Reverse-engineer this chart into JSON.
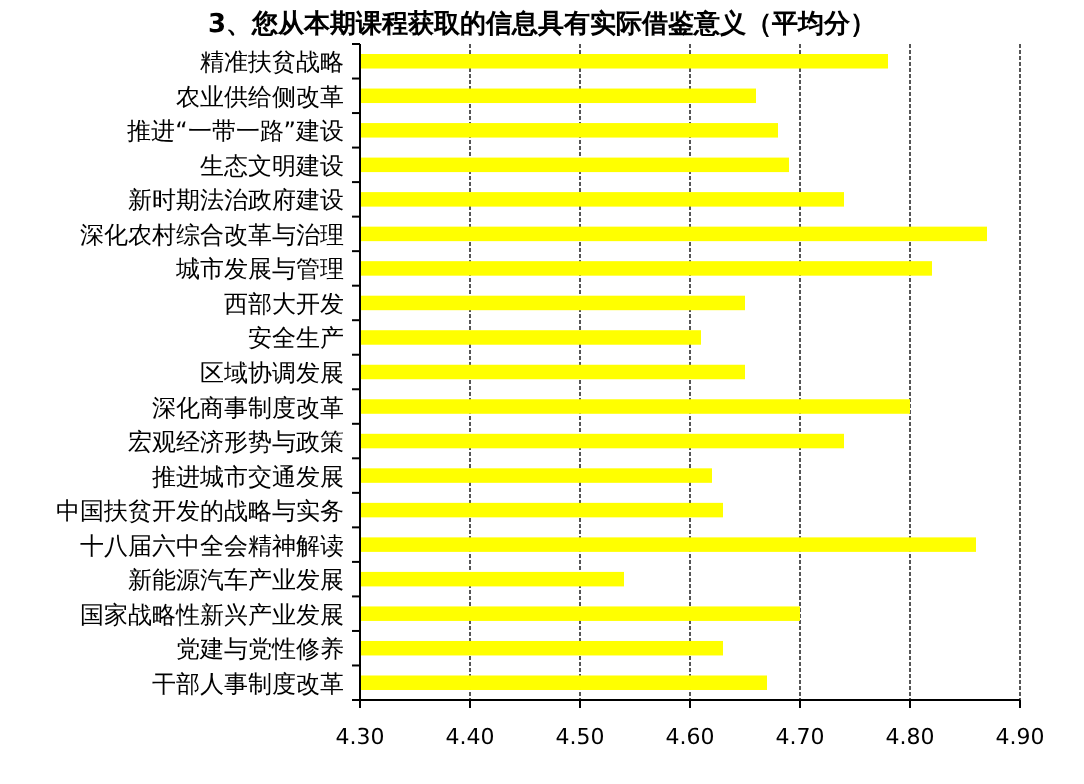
{
  "chart_data": {
    "type": "bar",
    "orientation": "horizontal",
    "title": "3、您从本期课程获取的信息具有实际借鉴意义（平均分）",
    "categories": [
      "精准扶贫战略",
      "农业供给侧改革",
      "推进“一带一路”建设",
      "生态文明建设",
      "新时期法治政府建设",
      "深化农村综合改革与治理",
      "城市发展与管理",
      "西部大开发",
      "安全生产",
      "区域协调发展",
      "深化商事制度改革",
      "宏观经济形势与政策",
      "推进城市交通发展",
      "中国扶贫开发的战略与实务",
      "十八届六中全会精神解读",
      "新能源汽车产业发展",
      "国家战略性新兴产业发展",
      "党建与党性修养",
      "干部人事制度改革"
    ],
    "values": [
      4.78,
      4.66,
      4.68,
      4.69,
      4.74,
      4.87,
      4.82,
      4.65,
      4.61,
      4.65,
      4.8,
      4.74,
      4.62,
      4.63,
      4.86,
      4.54,
      4.7,
      4.63,
      4.67
    ],
    "color": "#ffff00",
    "xlim": [
      4.3,
      4.9
    ],
    "xticks": [
      {
        "value": 4.3,
        "label": "4.30"
      },
      {
        "value": 4.4,
        "label": "4.40"
      },
      {
        "value": 4.5,
        "label": "4.50"
      },
      {
        "value": 4.6,
        "label": "4.60"
      },
      {
        "value": 4.7,
        "label": "4.70"
      },
      {
        "value": 4.8,
        "label": "4.80"
      },
      {
        "value": 4.9,
        "label": "4.90"
      }
    ],
    "grid": "x"
  }
}
